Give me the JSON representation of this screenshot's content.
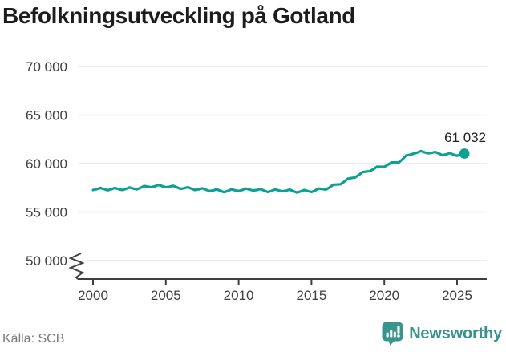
{
  "title": "Befolkningsutveckling på Gotland",
  "source": "Källa: SCB",
  "brand": {
    "name": "Newsworthy",
    "icon": "bar-chart-speech-bubble-icon",
    "color": "#3a948e"
  },
  "colors": {
    "line": "#0ea094",
    "marker": "#0ea094",
    "grid": "#e7e7e7",
    "axis": "#3f3f3f",
    "tick_text": "#3f3f3f",
    "title_text": "#1c1c1c",
    "value_label_text": "#212121",
    "source_text": "#7b7b7b"
  },
  "chart_data": {
    "type": "line",
    "title": "Befolkningsutveckling på Gotland",
    "series_name": "Befolkning på Gotland",
    "xlabel": "",
    "ylabel": "",
    "x_start": 2000,
    "x_step_years": 0.25,
    "xlim": [
      1999.5,
      2027
    ],
    "ylim": [
      50000,
      70000
    ],
    "axis_break_below": 50000,
    "grid": "horizontal",
    "legend": "none",
    "yticks": [
      {
        "value": 50000,
        "label": "50 000"
      },
      {
        "value": 55000,
        "label": "55 000"
      },
      {
        "value": 60000,
        "label": "60 000"
      },
      {
        "value": 65000,
        "label": "65 000"
      },
      {
        "value": 70000,
        "label": "70 000"
      }
    ],
    "xticks": [
      {
        "value": 2000,
        "label": "2000"
      },
      {
        "value": 2005,
        "label": "2005"
      },
      {
        "value": 2010,
        "label": "2010"
      },
      {
        "value": 2015,
        "label": "2015"
      },
      {
        "value": 2020,
        "label": "2020"
      },
      {
        "value": 2025,
        "label": "2025"
      }
    ],
    "last_value": 61032,
    "last_value_label": "61 032",
    "values": [
      57270,
      57355,
      57490,
      57365,
      57250,
      57345,
      57490,
      57375,
      57270,
      57378,
      57535,
      57433,
      57340,
      57488,
      57685,
      57623,
      57570,
      57658,
      57795,
      57673,
      57560,
      57610,
      57710,
      57550,
      57400,
      57458,
      57565,
      57413,
      57270,
      57335,
      57450,
      57305,
      57170,
      57230,
      57340,
      57190,
      57050,
      57170,
      57340,
      57250,
      57170,
      57273,
      57425,
      57318,
      57220,
      57273,
      57375,
      57218,
      57070,
      57178,
      57335,
      57233,
      57140,
      57200,
      57310,
      57160,
      57020,
      57123,
      57275,
      57168,
      57070,
      57223,
      57425,
      57368,
      57320,
      57548,
      57825,
      57843,
      57870,
      58135,
      58450,
      58505,
      58570,
      58823,
      59125,
      59168,
      59220,
      59423,
      59675,
      59668,
      59670,
      59873,
      60125,
      60118,
      60120,
      60435,
      60825,
      60905,
      61020,
      61123,
      61288,
      61168,
      61070,
      61110,
      61200,
      61030,
      60870,
      60943,
      61080,
      60928,
      60800,
      60940,
      61032
    ]
  }
}
